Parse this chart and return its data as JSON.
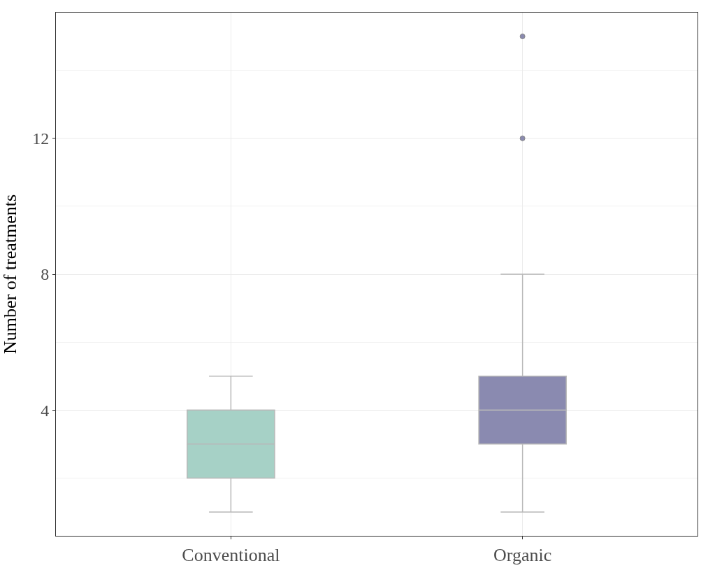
{
  "chart_data": {
    "type": "box",
    "ylabel": "Number of treatments",
    "categories": [
      "Conventional",
      "Organic"
    ],
    "colors": [
      "#a6d1c6",
      "#8a8ab0"
    ],
    "boxes": [
      {
        "low": 1,
        "q1": 2,
        "median": 3,
        "q3": 4,
        "high": 5
      },
      {
        "low": 1,
        "q1": 3,
        "median": 4,
        "q3": 5,
        "high": 8,
        "outliers": [
          12,
          15
        ]
      }
    ],
    "ylim": [
      0.3,
      15.7
    ],
    "yticks": [
      4,
      8,
      12
    ],
    "grid": true
  }
}
